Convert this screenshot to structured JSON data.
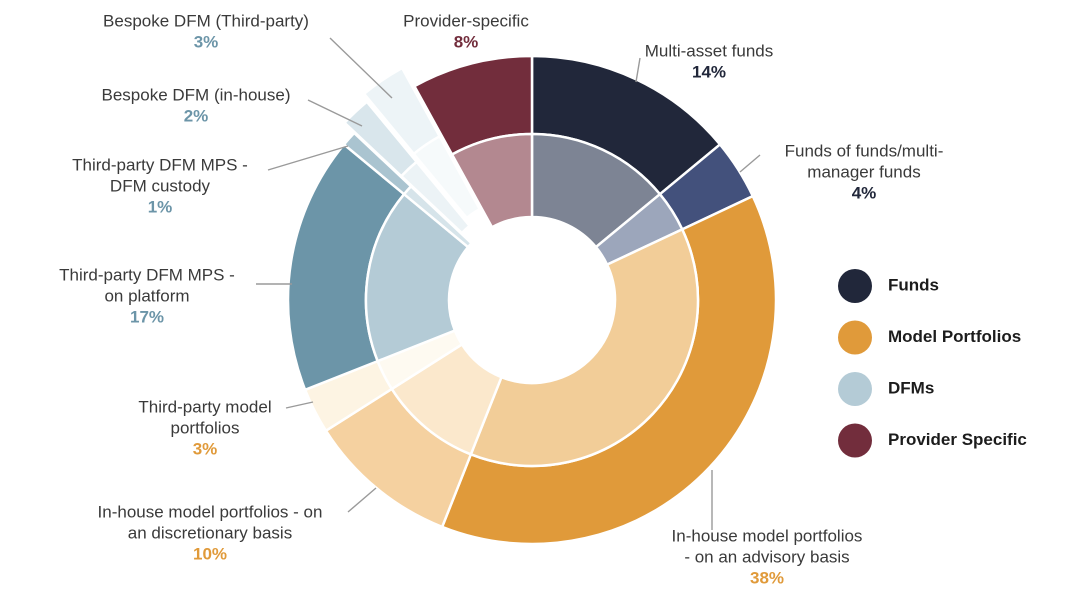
{
  "chart_data": {
    "type": "pie",
    "subtype": "nested-donut",
    "legend_position": "right",
    "legend": [
      {
        "label": "Funds",
        "color": "#21273a"
      },
      {
        "label": "Model Portfolios",
        "color": "#e09a3a"
      },
      {
        "label": "DFMs",
        "color": "#b4cbd6"
      },
      {
        "label": "Provider Specific",
        "color": "#722d3c"
      }
    ],
    "slices": [
      {
        "label": [
          "Multi-asset funds"
        ],
        "value": 14,
        "pct": "14%",
        "group": "Funds",
        "outer_color": "#21273a",
        "inner_color": "#7d8494",
        "pct_color": "#21273a"
      },
      {
        "label": [
          "Funds of funds/multi-",
          "manager funds"
        ],
        "value": 4,
        "pct": "4%",
        "group": "Funds",
        "outer_color": "#43517c",
        "inner_color": "#9ca6bb",
        "pct_color": "#21273a"
      },
      {
        "label": [
          "In-house model portfolios",
          "- on an advisory basis"
        ],
        "value": 38,
        "pct": "38%",
        "group": "Model Portfolios",
        "outer_color": "#e09a3a",
        "inner_color": "#f2cd98",
        "pct_color": "#e09a3a"
      },
      {
        "label": [
          "In-house model portfolios - on",
          "an discretionary basis"
        ],
        "value": 10,
        "pct": "10%",
        "group": "Model Portfolios",
        "outer_color": "#f5d1a0",
        "inner_color": "#fbe8cc",
        "pct_color": "#e09a3a"
      },
      {
        "label": [
          "Third-party model",
          "portfolios"
        ],
        "value": 3,
        "pct": "3%",
        "group": "Model Portfolios",
        "outer_color": "#fdf4e3",
        "inner_color": "#fefaf1",
        "pct_color": "#e09a3a"
      },
      {
        "label": [
          "Third-party DFM MPS -",
          "on platform"
        ],
        "value": 17,
        "pct": "17%",
        "group": "DFMs",
        "outer_color": "#6c95a8",
        "inner_color": "#b4cbd6",
        "pct_color": "#6c95a8"
      },
      {
        "label": [
          "Third-party DFM MPS -",
          "DFM custody"
        ],
        "value": 1,
        "pct": "1%",
        "group": "DFMs",
        "outer_color": "#aac4d0",
        "inner_color": "#d6e4ea",
        "pct_color": "#6c95a8"
      },
      {
        "label": [
          "Bespoke DFM (in-house)"
        ],
        "value": 2,
        "pct": "2%",
        "group": "DFMs",
        "outer_color": "#d9e6ec",
        "inner_color": "#ecf3f6",
        "pct_color": "#6c95a8"
      },
      {
        "label": [
          "Bespoke DFM (Third-party)"
        ],
        "value": 3,
        "pct": "3%",
        "group": "DFMs",
        "outer_color": "#edf4f7",
        "inner_color": "#f6fafb",
        "pct_color": "#6c95a8"
      },
      {
        "label": [
          "Provider-specific"
        ],
        "value": 8,
        "pct": "8%",
        "group": "Provider Specific",
        "outer_color": "#722d3c",
        "inner_color": "#b38890",
        "pct_color": "#722d3c"
      }
    ]
  }
}
